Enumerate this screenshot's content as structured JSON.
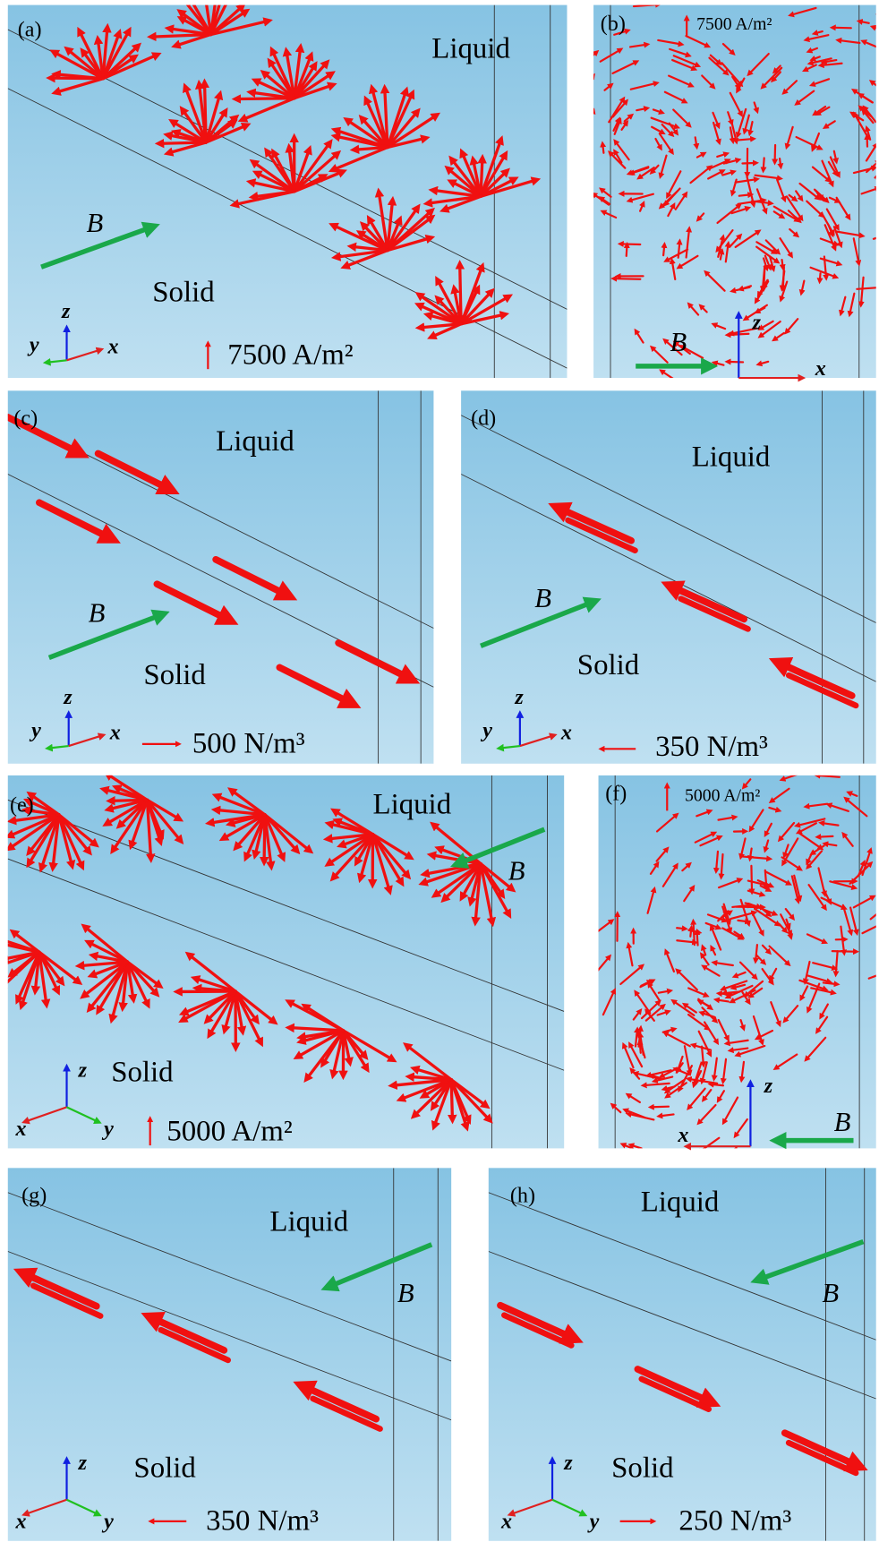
{
  "panels": [
    {
      "label": "(a)",
      "liquid": "Liquid",
      "solid": "Solid",
      "field": "B",
      "axis_x": "x",
      "axis_y": "y",
      "axis_z": "z",
      "scale": "7500 A/m²"
    },
    {
      "label": "(b)",
      "field": "B",
      "axis_x": "x",
      "axis_z": "z",
      "scale": "7500 A/m²"
    },
    {
      "label": "(c)",
      "liquid": "Liquid",
      "solid": "Solid",
      "field": "B",
      "axis_x": "x",
      "axis_y": "y",
      "axis_z": "z",
      "scale": "500 N/m³"
    },
    {
      "label": "(d)",
      "liquid": "Liquid",
      "solid": "Solid",
      "field": "B",
      "axis_x": "x",
      "axis_y": "y",
      "axis_z": "z",
      "scale": "350 N/m³"
    },
    {
      "label": "(e)",
      "liquid": "Liquid",
      "solid": "Solid",
      "field": "B",
      "axis_x": "x",
      "axis_y": "y",
      "axis_z": "z",
      "scale": "5000 A/m²"
    },
    {
      "label": "(f)",
      "field": "B",
      "axis_x": "x",
      "axis_z": "z",
      "scale": "5000 A/m²"
    },
    {
      "label": "(g)",
      "liquid": "Liquid",
      "solid": "Solid",
      "field": "B",
      "axis_x": "x",
      "axis_y": "y",
      "axis_z": "z",
      "scale": "350 N/m³"
    },
    {
      "label": "(h)",
      "liquid": "Liquid",
      "solid": "Solid",
      "field": "B",
      "axis_x": "x",
      "axis_y": "y",
      "axis_z": "z",
      "scale": "250 N/m³"
    }
  ]
}
